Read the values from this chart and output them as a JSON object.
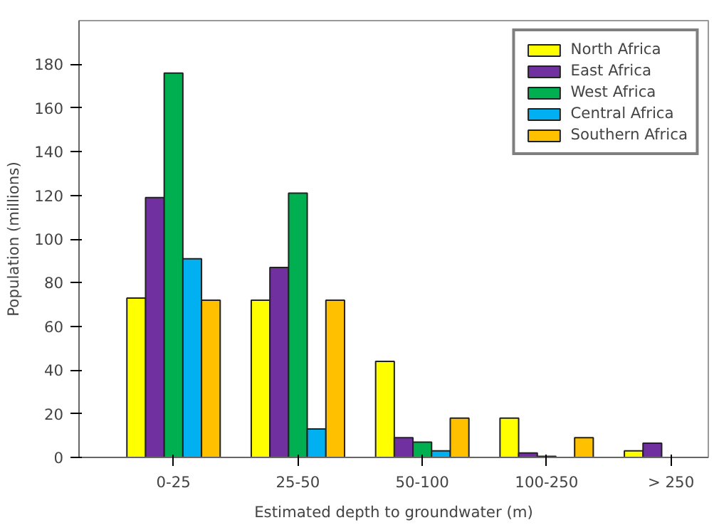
{
  "chart_data": {
    "type": "bar",
    "xlabel": "Estimated depth to groundwater (m)",
    "ylabel": "Population (millions)",
    "categories": [
      "0-25",
      "25-50",
      "50-100",
      "100-250",
      "> 250"
    ],
    "series": [
      {
        "name": "North Africa",
        "color": "#ffff00",
        "values": [
          73,
          72,
          44,
          18,
          3
        ]
      },
      {
        "name": "East Africa",
        "color": "#7030a0",
        "values": [
          119,
          87,
          9,
          2,
          6.5
        ]
      },
      {
        "name": "West Africa",
        "color": "#00b050",
        "values": [
          176,
          121,
          7,
          0.5,
          null
        ]
      },
      {
        "name": "Central Africa",
        "color": "#00b0f0",
        "values": [
          91,
          13,
          3,
          null,
          null
        ]
      },
      {
        "name": "Southern Africa",
        "color": "#ffc000",
        "values": [
          72,
          72,
          18,
          9,
          null
        ]
      }
    ],
    "ylim": [
      0,
      200
    ],
    "yticks": [
      0,
      20,
      40,
      60,
      80,
      100,
      120,
      140,
      160,
      180
    ],
    "grid": false,
    "legend": "top right"
  }
}
